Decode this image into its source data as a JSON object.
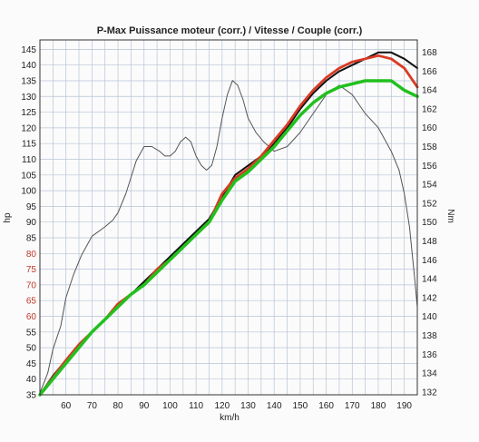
{
  "chart_data": {
    "type": "line",
    "title": "P-Max Puissance moteur (corr.) / Vitesse / Couple (corr.)",
    "xlabel": "km/h",
    "ylabel_left": "hp",
    "ylabel_right": "Nm",
    "xlim": [
      50,
      195
    ],
    "ylim_left": [
      35,
      148
    ],
    "ylim_right": [
      131.7,
      169.3
    ],
    "x_ticks": [
      "60",
      "70",
      "80",
      "90",
      "100",
      "110",
      "120",
      "130",
      "140",
      "150",
      "160",
      "170",
      "180",
      "190"
    ],
    "y_left_ticks": [
      "35",
      "40",
      "45",
      "50",
      "55",
      "60",
      "65",
      "70",
      "75",
      "80",
      "85",
      "90",
      "95",
      "100",
      "105",
      "110",
      "115",
      "120",
      "125",
      "130",
      "135",
      "140",
      "145"
    ],
    "y_left_red_ticks": [
      "60",
      "65",
      "70",
      "75",
      "80"
    ],
    "y_right_ticks": [
      "132",
      "134",
      "136",
      "138",
      "140",
      "142",
      "144",
      "146",
      "148",
      "150",
      "152",
      "154",
      "156",
      "158",
      "160",
      "162",
      "164",
      "166",
      "168"
    ],
    "grid": true,
    "series": [
      {
        "axis": "right",
        "color": "#555555",
        "x": [
          50,
          53,
          55,
          58,
          60,
          63,
          66,
          70,
          75,
          78,
          80,
          83,
          87,
          90,
          93,
          96,
          98,
          100,
          102,
          104,
          106,
          108,
          110,
          112,
          114,
          116,
          118,
          120,
          122,
          124,
          126,
          128,
          130,
          133,
          136,
          140,
          145,
          150,
          155,
          160,
          165,
          170,
          175,
          180,
          185,
          188,
          190,
          192,
          194,
          195
        ],
        "values": [
          131.9,
          134,
          136.5,
          139,
          142,
          144.5,
          146.5,
          148.5,
          149.5,
          150.2,
          151,
          153,
          156.5,
          158,
          158,
          157.5,
          157,
          157,
          157.5,
          158.5,
          159,
          158.5,
          157,
          156,
          155.5,
          156,
          158,
          161,
          163.5,
          165,
          164.5,
          163,
          161,
          159.5,
          158.5,
          157.5,
          158,
          159.5,
          161.5,
          163.5,
          164.5,
          163.5,
          161.5,
          160,
          157.5,
          155.5,
          153,
          149.5,
          144,
          141
        ]
      },
      {
        "axis": "left",
        "color": "#111111",
        "x": [
          50,
          55,
          60,
          65,
          70,
          75,
          80,
          85,
          90,
          95,
          100,
          105,
          110,
          115,
          120,
          125,
          130,
          135,
          140,
          145,
          150,
          155,
          160,
          165,
          170,
          175,
          180,
          185,
          190,
          195
        ],
        "values": [
          35,
          41,
          46,
          51,
          55,
          59,
          63,
          67,
          71,
          75,
          79,
          83,
          87,
          91,
          98,
          105,
          108,
          111,
          115,
          120,
          126,
          131,
          135,
          138,
          140,
          142,
          144,
          144,
          142,
          139
        ]
      },
      {
        "axis": "left",
        "color": "#d93a24",
        "x": [
          50,
          55,
          60,
          65,
          70,
          75,
          80,
          85,
          90,
          95,
          100,
          105,
          110,
          115,
          120,
          125,
          130,
          135,
          140,
          145,
          150,
          155,
          160,
          165,
          170,
          175,
          180,
          185,
          190,
          195
        ],
        "values": [
          35,
          40.5,
          46,
          51,
          55,
          59,
          64,
          67,
          70,
          75,
          78,
          82,
          86,
          90,
          99,
          104,
          107,
          111,
          116,
          121,
          127,
          132,
          136,
          139,
          141,
          142,
          143,
          142,
          139,
          133
        ]
      },
      {
        "axis": "left",
        "color": "#22c01e",
        "x": [
          50,
          55,
          60,
          65,
          70,
          75,
          80,
          85,
          90,
          95,
          100,
          105,
          110,
          115,
          120,
          125,
          130,
          135,
          140,
          145,
          150,
          155,
          160,
          165,
          170,
          175,
          180,
          185,
          190,
          195
        ],
        "values": [
          35,
          40,
          45,
          50,
          55,
          59,
          63,
          67,
          70,
          74,
          78,
          82,
          86,
          90,
          97,
          103,
          106,
          110,
          114,
          119,
          124,
          128,
          131,
          133,
          134,
          135,
          135,
          135,
          132,
          130
        ]
      }
    ]
  }
}
